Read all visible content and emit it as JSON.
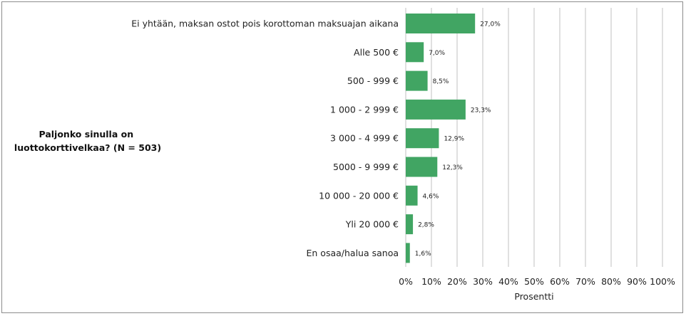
{
  "chart_data": {
    "type": "bar",
    "orientation": "horizontal",
    "title_lines": [
      "Paljonko sinulla on",
      "luottokorttivelkaa? (N = 503)"
    ],
    "xlabel": "Prosentti",
    "categories": [
      "Ei yhtään, maksan ostot pois korottoman maksuajan aikana",
      "Alle 500 €",
      "500 - 999 €",
      "1 000 - 2 999 €",
      "3 000 - 4 999 €",
      "5000 - 9 999 €",
      "10 000 - 20 000 €",
      "Yli 20 000 €",
      "En osaa/halua sanoa"
    ],
    "values": [
      27.0,
      7.0,
      8.5,
      23.3,
      12.9,
      12.3,
      4.6,
      2.8,
      1.6
    ],
    "value_labels": [
      "27,0%",
      "7,0%",
      "8,5%",
      "23,3%",
      "12,9%",
      "12,3%",
      "4,6%",
      "2,8%",
      "1,6%"
    ],
    "xlim": [
      0,
      100
    ],
    "xticks": [
      0,
      10,
      20,
      30,
      40,
      50,
      60,
      70,
      80,
      90,
      100
    ],
    "xtick_labels": [
      "0%",
      "10%",
      "20%",
      "30%",
      "40%",
      "50%",
      "60%",
      "70%",
      "80%",
      "90%",
      "100%"
    ],
    "grid": true,
    "bar_color": "#41a563",
    "grid_color": "#d9d9d9"
  }
}
